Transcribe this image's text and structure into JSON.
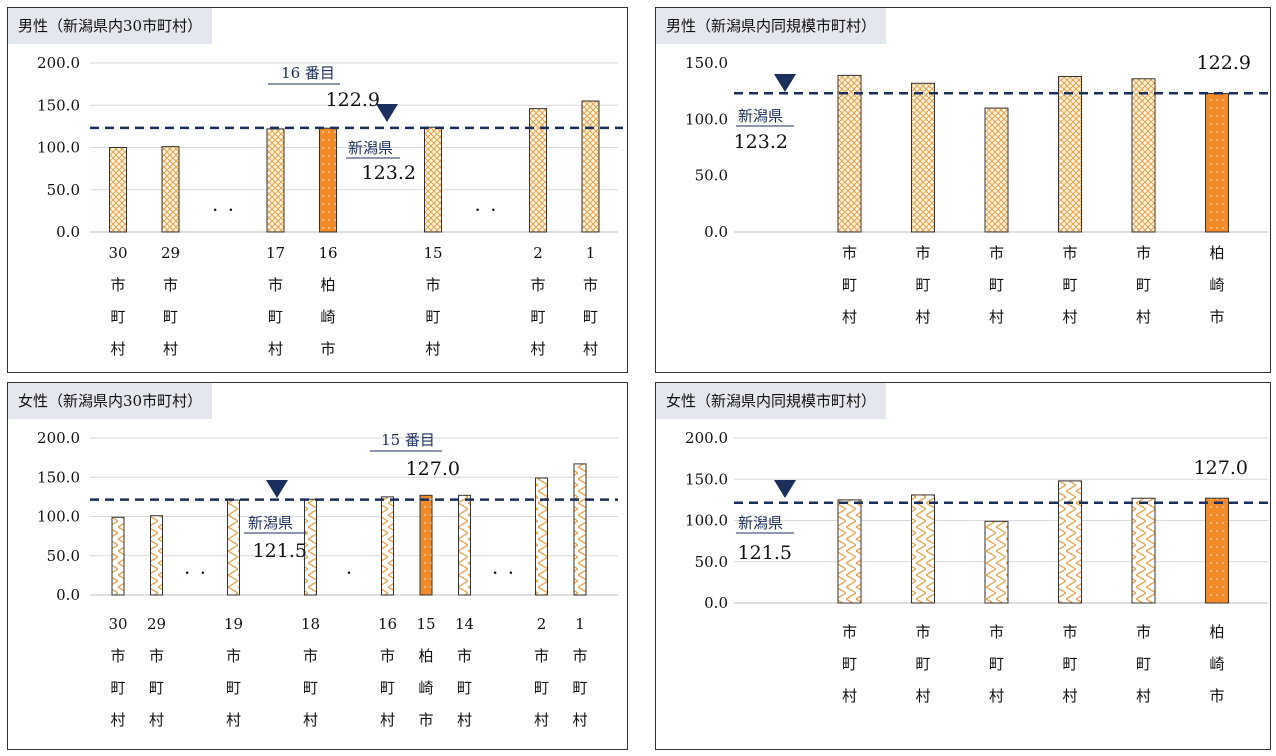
{
  "colors": {
    "highlight": "#f28a26",
    "pattern": "#f0a040",
    "reference_line": "#1b2f5e",
    "marker": "#1b2f5e",
    "gridline": "#d9d9d9"
  },
  "chart_data": [
    {
      "type": "bar",
      "title": "男性（新潟県内30市町村）",
      "y_ticks": [
        "200.0",
        "150.0",
        "100.0",
        "50.0",
        "0.0"
      ],
      "ylim": [
        0,
        200
      ],
      "grid": true,
      "bars": [
        {
          "rank": "30",
          "name": "市町村",
          "value": 100,
          "highlight": false
        },
        {
          "rank": "29",
          "name": "市町村",
          "value": 101,
          "highlight": false
        },
        {
          "gap": "・ ・"
        },
        {
          "rank": "17",
          "name": "市町村",
          "value": 122,
          "highlight": false
        },
        {
          "rank": "16",
          "name": "柏崎市",
          "value": 122.9,
          "highlight": true
        },
        {
          "spacer": true
        },
        {
          "rank": "15",
          "name": "市町村",
          "value": 124,
          "highlight": false
        },
        {
          "gap": "・ ・"
        },
        {
          "rank": "2",
          "name": "市町村",
          "value": 146,
          "highlight": false
        },
        {
          "rank": "1",
          "name": "市町村",
          "value": 155,
          "highlight": false
        }
      ],
      "reference": {
        "label": "新潟県",
        "value": "123.2",
        "y": 123.2
      },
      "target_rank": "16 番目",
      "target_value": "122.9",
      "pattern": "diamond"
    },
    {
      "type": "bar",
      "title": "男性（新潟県内同規模市町村）",
      "y_ticks": [
        "150.0",
        "100.0",
        "50.0",
        "0.0"
      ],
      "ylim": [
        0,
        150
      ],
      "grid": false,
      "bars": [
        {
          "spacer": true
        },
        {
          "name": "市町村",
          "value": 139,
          "highlight": false
        },
        {
          "name": "市町村",
          "value": 132,
          "highlight": false
        },
        {
          "name": "市町村",
          "value": 110,
          "highlight": false
        },
        {
          "name": "市町村",
          "value": 138,
          "highlight": false
        },
        {
          "name": "市町村",
          "value": 136,
          "highlight": false
        },
        {
          "name": "柏崎市",
          "value": 122.9,
          "highlight": true
        }
      ],
      "reference": {
        "label": "新潟県",
        "value": "123.2",
        "y": 123.2
      },
      "target_value": "122.9",
      "pattern": "diamond"
    },
    {
      "type": "bar",
      "title": "女性（新潟県内30市町村）",
      "y_ticks": [
        "200.0",
        "150.0",
        "100.0",
        "50.0",
        "0.0"
      ],
      "ylim": [
        0,
        200
      ],
      "grid": true,
      "bars": [
        {
          "rank": "30",
          "name": "市町村",
          "value": 99,
          "highlight": false
        },
        {
          "rank": "29",
          "name": "市町村",
          "value": 101,
          "highlight": false
        },
        {
          "gap": "・ ・"
        },
        {
          "rank": "19",
          "name": "市町村",
          "value": 121,
          "highlight": false
        },
        {
          "spacer": true
        },
        {
          "rank": "18",
          "name": "市町村",
          "value": 122,
          "highlight": false
        },
        {
          "gap": "・"
        },
        {
          "rank": "16",
          "name": "市町村",
          "value": 125,
          "highlight": false
        },
        {
          "rank": "15",
          "name": "柏崎市",
          "value": 127,
          "highlight": true
        },
        {
          "rank": "14",
          "name": "市町村",
          "value": 127,
          "highlight": false
        },
        {
          "gap": "・ ・"
        },
        {
          "rank": "2",
          "name": "市町村",
          "value": 149,
          "highlight": false
        },
        {
          "rank": "1",
          "name": "市町村",
          "value": 167,
          "highlight": false
        }
      ],
      "reference": {
        "label": "新潟県",
        "value": "121.5",
        "y": 121.5
      },
      "target_rank": "15 番目",
      "target_value": "127.0",
      "pattern": "zigzag"
    },
    {
      "type": "bar",
      "title": "女性（新潟県内同規模市町村）",
      "y_ticks": [
        "200.0",
        "150.0",
        "100.0",
        "50.0",
        "0.0"
      ],
      "ylim": [
        0,
        200
      ],
      "grid": true,
      "bars": [
        {
          "spacer": true
        },
        {
          "name": "市町村",
          "value": 125,
          "highlight": false
        },
        {
          "name": "市町村",
          "value": 131,
          "highlight": false
        },
        {
          "name": "市町村",
          "value": 99,
          "highlight": false
        },
        {
          "name": "市町村",
          "value": 148,
          "highlight": false
        },
        {
          "name": "市町村",
          "value": 127,
          "highlight": false
        },
        {
          "name": "柏崎市",
          "value": 127,
          "highlight": true
        }
      ],
      "reference": {
        "label": "新潟県",
        "value": "121.5",
        "y": 121.5
      },
      "target_value": "127.0",
      "pattern": "zigzag"
    }
  ]
}
